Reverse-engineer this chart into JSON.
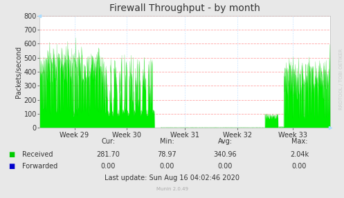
{
  "title": "Firewall Throughput - by month",
  "ylabel": "Packets/second",
  "fig_bg_color": "#e8e8e8",
  "plot_bg_color": "#ffffff",
  "h_grid_color": "#ff9999",
  "v_grid_color": "#bbddff",
  "border_color": "#aaaaaa",
  "yticks": [
    0,
    100,
    200,
    300,
    400,
    500,
    600,
    700,
    800
  ],
  "ylim": [
    0,
    800
  ],
  "xtick_labels": [
    "Week 29",
    "Week 30",
    "Week 31",
    "Week 32",
    "Week 33"
  ],
  "xtick_positions": [
    0.12,
    0.3,
    0.5,
    0.68,
    0.87
  ],
  "line_color_received": "#00cc00",
  "fill_color_received": "#00ee00",
  "legend_received_color": "#00cc00",
  "legend_forwarded_color": "#0000cc",
  "footer_received_values": [
    "281.70",
    "78.97",
    "340.96",
    "2.04k"
  ],
  "footer_forwarded_values": [
    "0.00",
    "0.00",
    "0.00",
    "0.00"
  ],
  "last_update": "Last update: Sun Aug 16 04:02:46 2020",
  "munin_version": "Munin 2.0.49",
  "rrdtool_label": "RRDTOOL / TOBI OETIKER",
  "title_fontsize": 10,
  "axis_fontsize": 7,
  "legend_fontsize": 7,
  "footer_fontsize": 7,
  "watermark_fontsize": 5
}
